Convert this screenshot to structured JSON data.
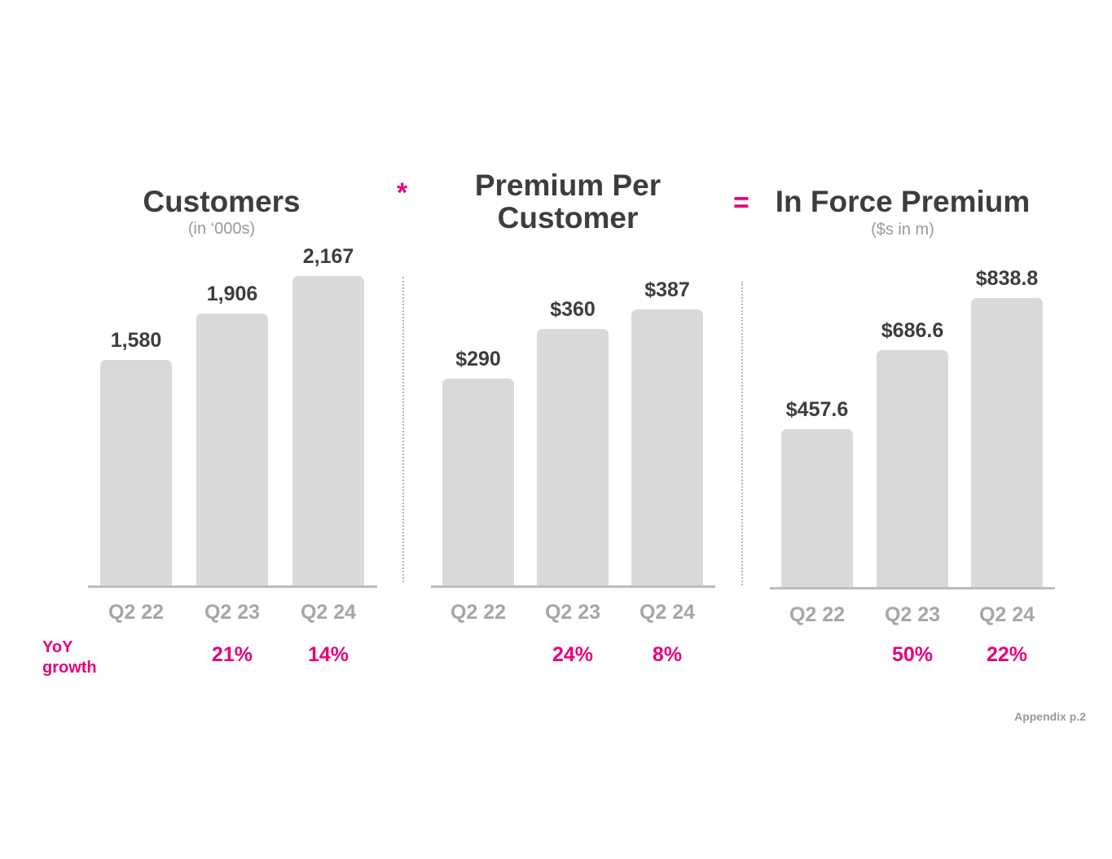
{
  "footer": "Appendix p.2",
  "yoy_label": "YoY growth",
  "operators": {
    "multiply": "*",
    "equals": "="
  },
  "colors": {
    "accent": "#e6007e",
    "bar": "#d9d9d9",
    "text": "#3d3d3d",
    "muted": "#a6a6a6"
  },
  "chart_data": [
    {
      "type": "bar",
      "title": "Customers",
      "subtitle": "(in ‘000s)",
      "categories": [
        "Q2 22",
        "Q2 23",
        "Q2 24"
      ],
      "values": [
        1580,
        1906,
        2167
      ],
      "value_labels": [
        "1,580",
        "1,906",
        "2,167"
      ],
      "growth": [
        "",
        "21%",
        "14%"
      ],
      "ylim": [
        0,
        2500
      ]
    },
    {
      "type": "bar",
      "title": "Premium Per Customer",
      "subtitle": "",
      "categories": [
        "Q2 22",
        "Q2 23",
        "Q2 24"
      ],
      "values": [
        290,
        360,
        387
      ],
      "value_labels": [
        "$290",
        "$360",
        "$387"
      ],
      "growth": [
        "",
        "24%",
        "8%"
      ],
      "ylim": [
        0,
        440
      ]
    },
    {
      "type": "bar",
      "title": "In Force Premium",
      "subtitle": "($s in m)",
      "categories": [
        "Q2 22",
        "Q2 23",
        "Q2 24"
      ],
      "values": [
        457.6,
        686.6,
        838.8
      ],
      "value_labels": [
        "$457.6",
        "$686.6",
        "$838.8"
      ],
      "growth": [
        "",
        "50%",
        "22%"
      ],
      "ylim": [
        0,
        850
      ]
    }
  ]
}
